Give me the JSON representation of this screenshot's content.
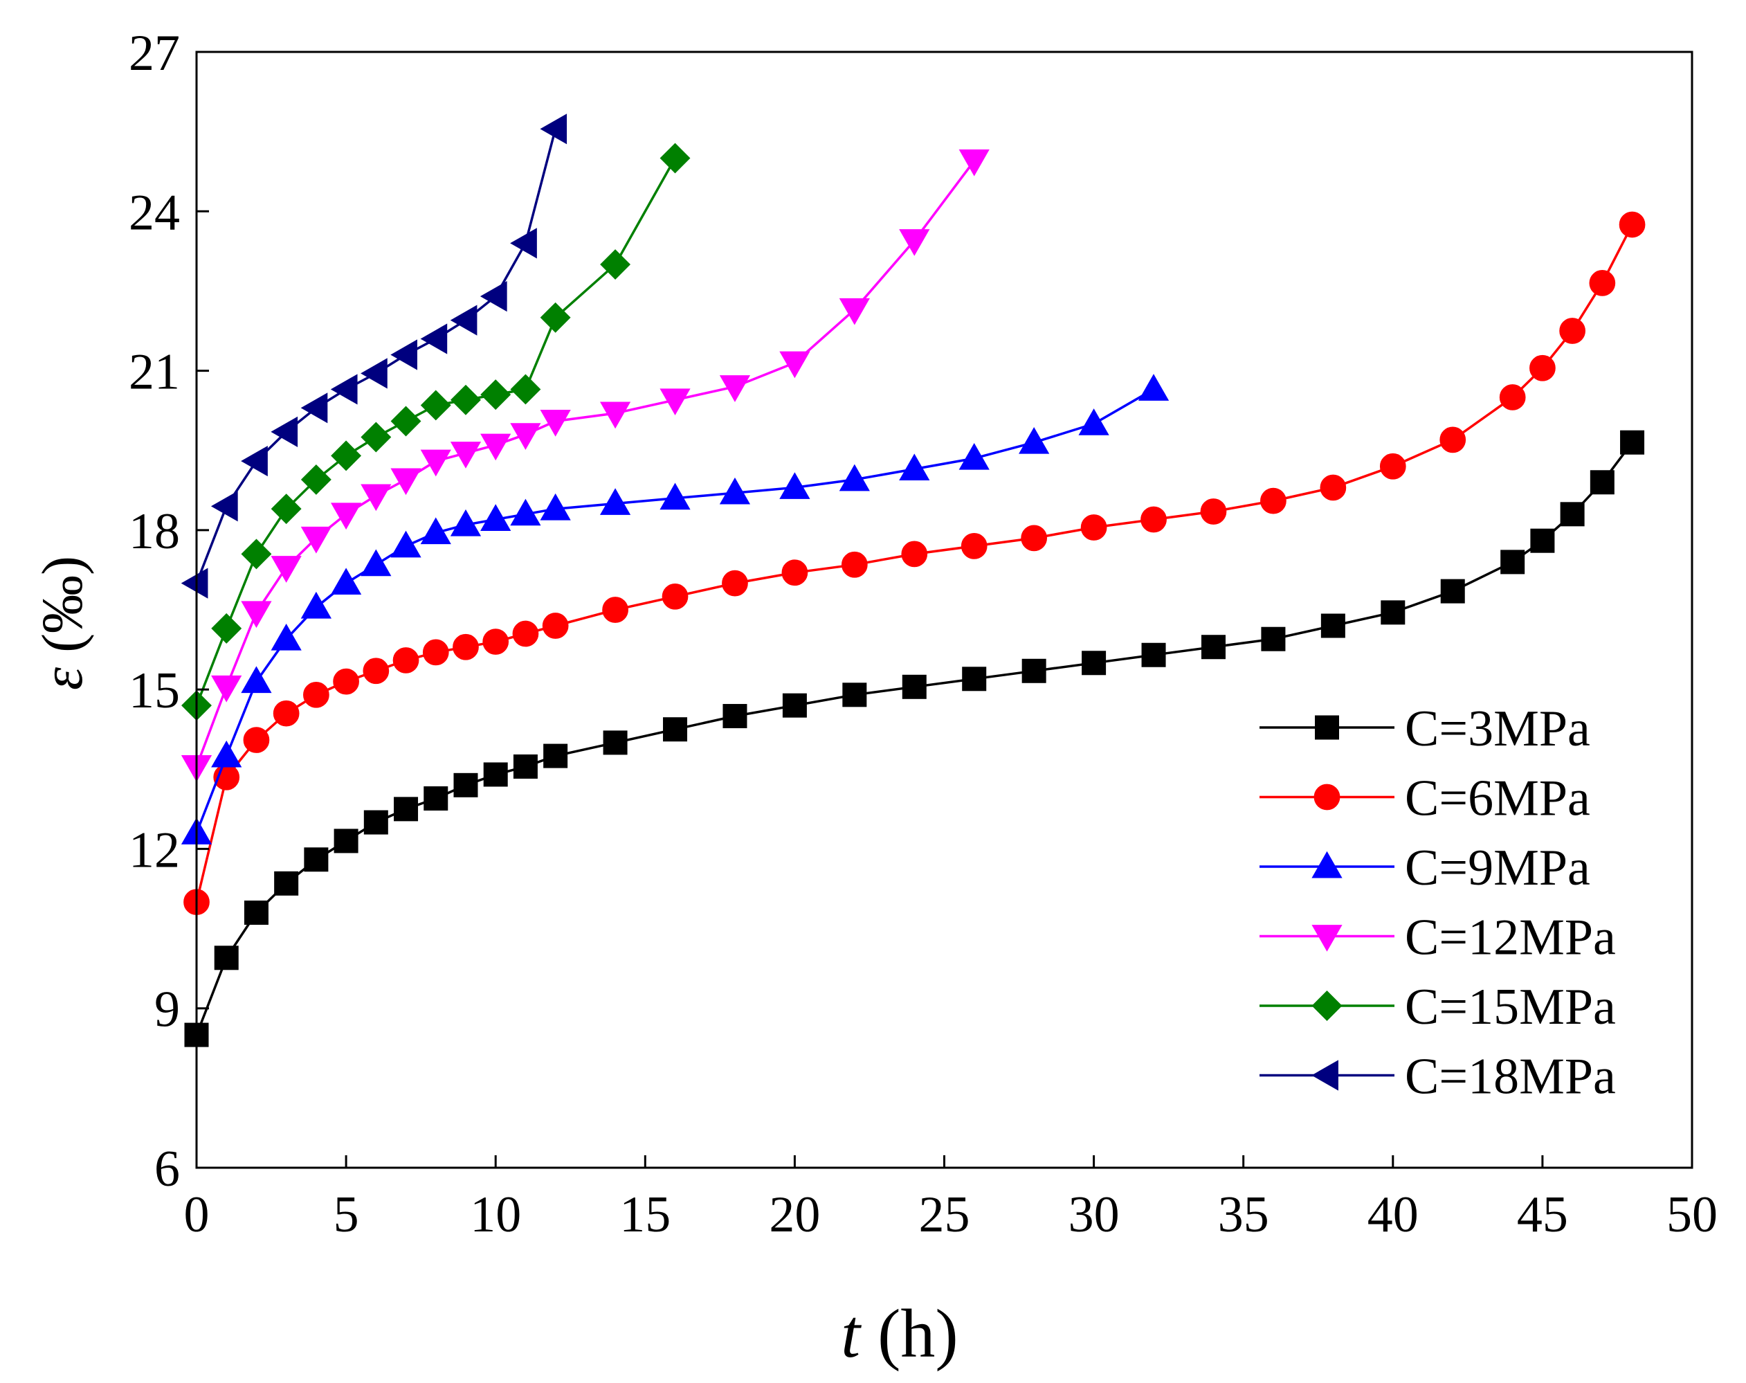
{
  "chart_data": {
    "type": "line",
    "title": "",
    "xlabel": {
      "symbol": "t",
      "unit": " (h)"
    },
    "ylabel": {
      "symbol": "ε",
      "unit": " (‰)"
    },
    "xlim": [
      0,
      50
    ],
    "ylim": [
      6,
      27
    ],
    "xticks": [
      0,
      5,
      10,
      15,
      20,
      25,
      30,
      35,
      40,
      45,
      50
    ],
    "yticks": [
      6,
      9,
      12,
      15,
      18,
      21,
      24,
      27
    ],
    "grid": false,
    "legend_position": "bottom-right",
    "series": [
      {
        "name": "C=3MPa",
        "color": "#000000",
        "marker": "square",
        "x": [
          0,
          1,
          2,
          3,
          4,
          5,
          6,
          7,
          8,
          9,
          10,
          11,
          12,
          14,
          16,
          18,
          20,
          22,
          24,
          26,
          28,
          30,
          32,
          34,
          36,
          38,
          40,
          42,
          44,
          45,
          46,
          47,
          48
        ],
        "y": [
          8.5,
          9.95,
          10.8,
          11.35,
          11.8,
          12.15,
          12.5,
          12.75,
          12.95,
          13.2,
          13.4,
          13.55,
          13.75,
          14.0,
          14.25,
          14.5,
          14.7,
          14.9,
          15.05,
          15.2,
          15.35,
          15.5,
          15.65,
          15.8,
          15.95,
          16.2,
          16.45,
          16.85,
          17.4,
          17.8,
          18.3,
          18.9,
          19.65
        ]
      },
      {
        "name": "C=6MPa",
        "color": "#ff0000",
        "marker": "circle",
        "x": [
          0,
          1,
          2,
          3,
          4,
          5,
          6,
          7,
          8,
          9,
          10,
          11,
          12,
          14,
          16,
          18,
          20,
          22,
          24,
          26,
          28,
          30,
          32,
          34,
          36,
          38,
          40,
          42,
          44,
          45,
          46,
          47,
          48
        ],
        "y": [
          11.0,
          13.35,
          14.05,
          14.55,
          14.9,
          15.15,
          15.35,
          15.55,
          15.7,
          15.8,
          15.9,
          16.05,
          16.2,
          16.5,
          16.75,
          17.0,
          17.2,
          17.35,
          17.55,
          17.7,
          17.85,
          18.05,
          18.2,
          18.35,
          18.55,
          18.8,
          19.2,
          19.7,
          20.5,
          21.05,
          21.75,
          22.65,
          23.75
        ]
      },
      {
        "name": "C=9MPa",
        "color": "#0000ff",
        "marker": "triangle-up",
        "x": [
          0,
          1,
          2,
          3,
          4,
          5,
          6,
          7,
          8,
          9,
          10,
          11,
          12,
          14,
          16,
          18,
          20,
          22,
          24,
          26,
          28,
          30,
          32
        ],
        "y": [
          12.3,
          13.75,
          15.15,
          15.95,
          16.55,
          17.0,
          17.35,
          17.7,
          17.95,
          18.1,
          18.2,
          18.3,
          18.4,
          18.5,
          18.6,
          18.7,
          18.8,
          18.95,
          19.15,
          19.35,
          19.65,
          20.0,
          20.65
        ]
      },
      {
        "name": "C=12MPa",
        "color": "#ff00ff",
        "marker": "triangle-down",
        "x": [
          0,
          1,
          2,
          3,
          4,
          5,
          6,
          7,
          8,
          9,
          10,
          11,
          12,
          14,
          16,
          18,
          20,
          22,
          24,
          26
        ],
        "y": [
          13.55,
          15.05,
          16.45,
          17.3,
          17.85,
          18.3,
          18.65,
          18.95,
          19.3,
          19.45,
          19.6,
          19.8,
          20.05,
          20.2,
          20.45,
          20.7,
          21.15,
          22.15,
          23.45,
          24.95
        ]
      },
      {
        "name": "C=15MPa",
        "color": "#008000",
        "marker": "diamond",
        "x": [
          0,
          1,
          2,
          3,
          4,
          5,
          6,
          7,
          8,
          9,
          10,
          11,
          12,
          14,
          16
        ],
        "y": [
          14.7,
          16.15,
          17.55,
          18.4,
          18.95,
          19.4,
          19.75,
          20.05,
          20.35,
          20.45,
          20.55,
          20.65,
          22.0,
          23.0,
          25.0
        ]
      },
      {
        "name": "C=18MPa",
        "color": "#00007f",
        "marker": "triangle-left",
        "x": [
          0,
          1,
          2,
          3,
          4,
          5,
          6,
          7,
          8,
          9,
          10,
          11,
          12
        ],
        "y": [
          17.0,
          18.45,
          19.3,
          19.85,
          20.3,
          20.65,
          20.95,
          21.3,
          21.6,
          21.95,
          22.4,
          23.4,
          25.55
        ]
      }
    ]
  }
}
